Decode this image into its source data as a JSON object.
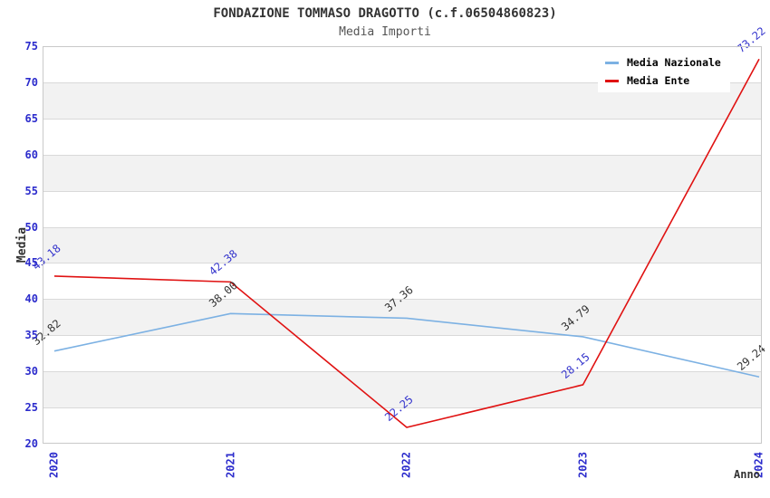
{
  "chart_data": {
    "type": "line",
    "title": "FONDAZIONE TOMMASO DRAGOTTO (c.f.06504860823)",
    "subtitle": "Media Importi",
    "xlabel": "Anno",
    "ylabel": "Media",
    "x_categories": [
      "2020",
      "2021",
      "2022",
      "2023",
      "2024"
    ],
    "ylim": [
      20,
      75
    ],
    "ytick_step": 5,
    "yticks": [
      20,
      25,
      30,
      35,
      40,
      45,
      50,
      55,
      60,
      65,
      70,
      75
    ],
    "grid": "horizontal gridlines with alternating shaded bands",
    "legend_position": "top-right",
    "series": [
      {
        "name": "Media Nazionale",
        "color": "#7cb1e3",
        "label_color": "#333333",
        "values": [
          32.82,
          38.0,
          37.36,
          34.79,
          29.24
        ]
      },
      {
        "name": "Media Ente",
        "color": "#e01212",
        "label_color": "#3333cc",
        "values": [
          43.18,
          42.38,
          22.25,
          28.15,
          73.22
        ]
      }
    ]
  },
  "colors": {
    "tick_label": "#2b2bcc",
    "gridline": "#d9d9d9",
    "band": "#f2f2f2",
    "spine": "#c9c9c9",
    "title": "#333333",
    "subtitle": "#555555",
    "legend_text": "#000000",
    "background": "#ffffff"
  }
}
